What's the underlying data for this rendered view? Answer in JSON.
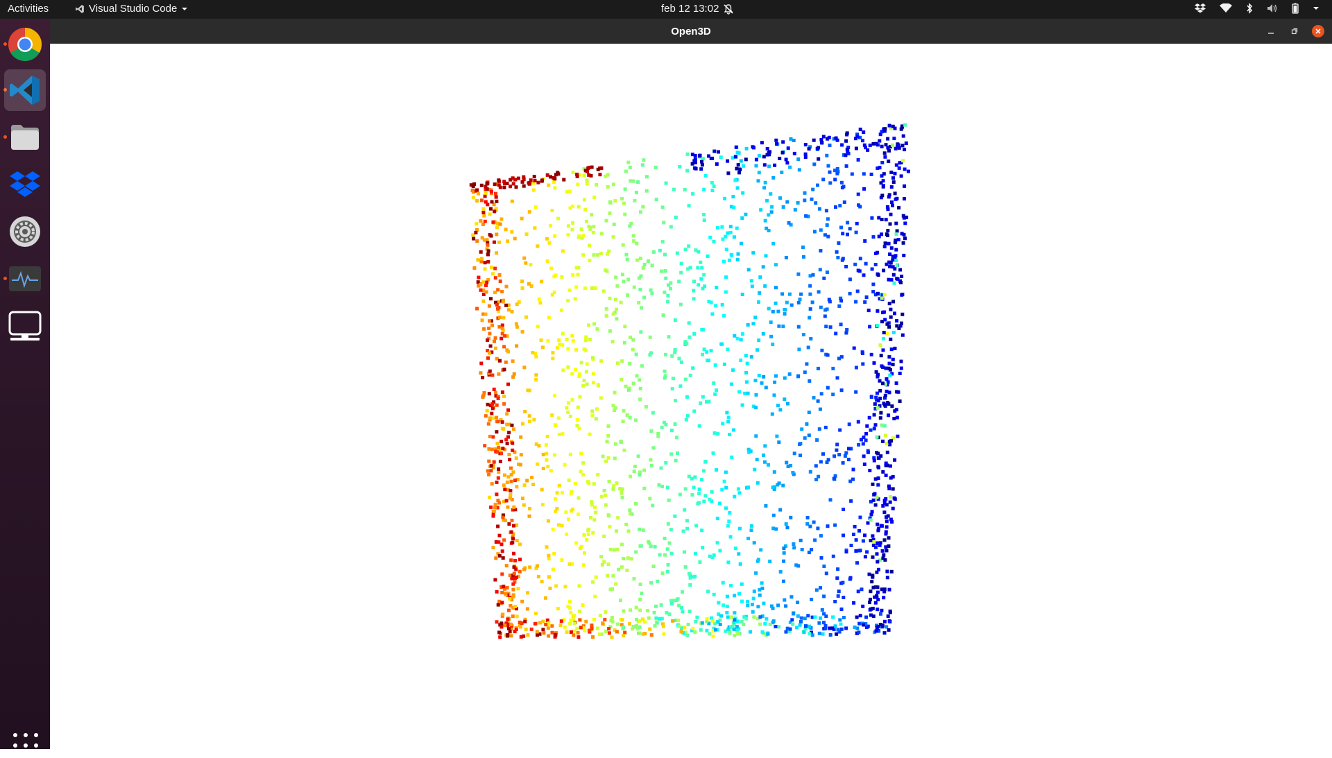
{
  "topbar": {
    "activities": "Activities",
    "app_name": "Visual Studio Code",
    "datetime": "feb 12  13:02",
    "icons": [
      "dropbox-tray-icon",
      "wifi-icon",
      "bluetooth-icon",
      "volume-icon",
      "battery-icon",
      "system-menu-chevron-icon"
    ]
  },
  "dock": {
    "items": [
      {
        "name": "chrome",
        "icon": "chrome-icon",
        "running": true,
        "active": false
      },
      {
        "name": "vscode",
        "icon": "vscode-icon",
        "running": true,
        "active": true
      },
      {
        "name": "files",
        "icon": "files-icon",
        "running": true,
        "active": false
      },
      {
        "name": "dropbox",
        "icon": "dropbox-icon",
        "running": false,
        "active": false
      },
      {
        "name": "settings",
        "icon": "settings-icon",
        "running": false,
        "active": false
      },
      {
        "name": "system-monitor",
        "icon": "system-monitor-icon",
        "running": true,
        "active": false
      },
      {
        "name": "display",
        "icon": "display-icon",
        "running": false,
        "active": false
      }
    ],
    "show_apps_icon": "app-grid-icon"
  },
  "window": {
    "title": "Open3D",
    "controls": [
      "minimize",
      "restore",
      "close"
    ]
  },
  "colors": {
    "topbar_bg": "#1b1b1b",
    "dock_bg": "#2c1428",
    "titlebar_bg": "#2c2c2c",
    "accent": "#e95420",
    "canvas_bg": "#ffffff",
    "colormap": "jet"
  },
  "point_cloud": {
    "colormap": "jet",
    "point_shape": "square",
    "description": "sheet-like point cloud rendered with a red-yellow-green-cyan-blue gradient"
  }
}
